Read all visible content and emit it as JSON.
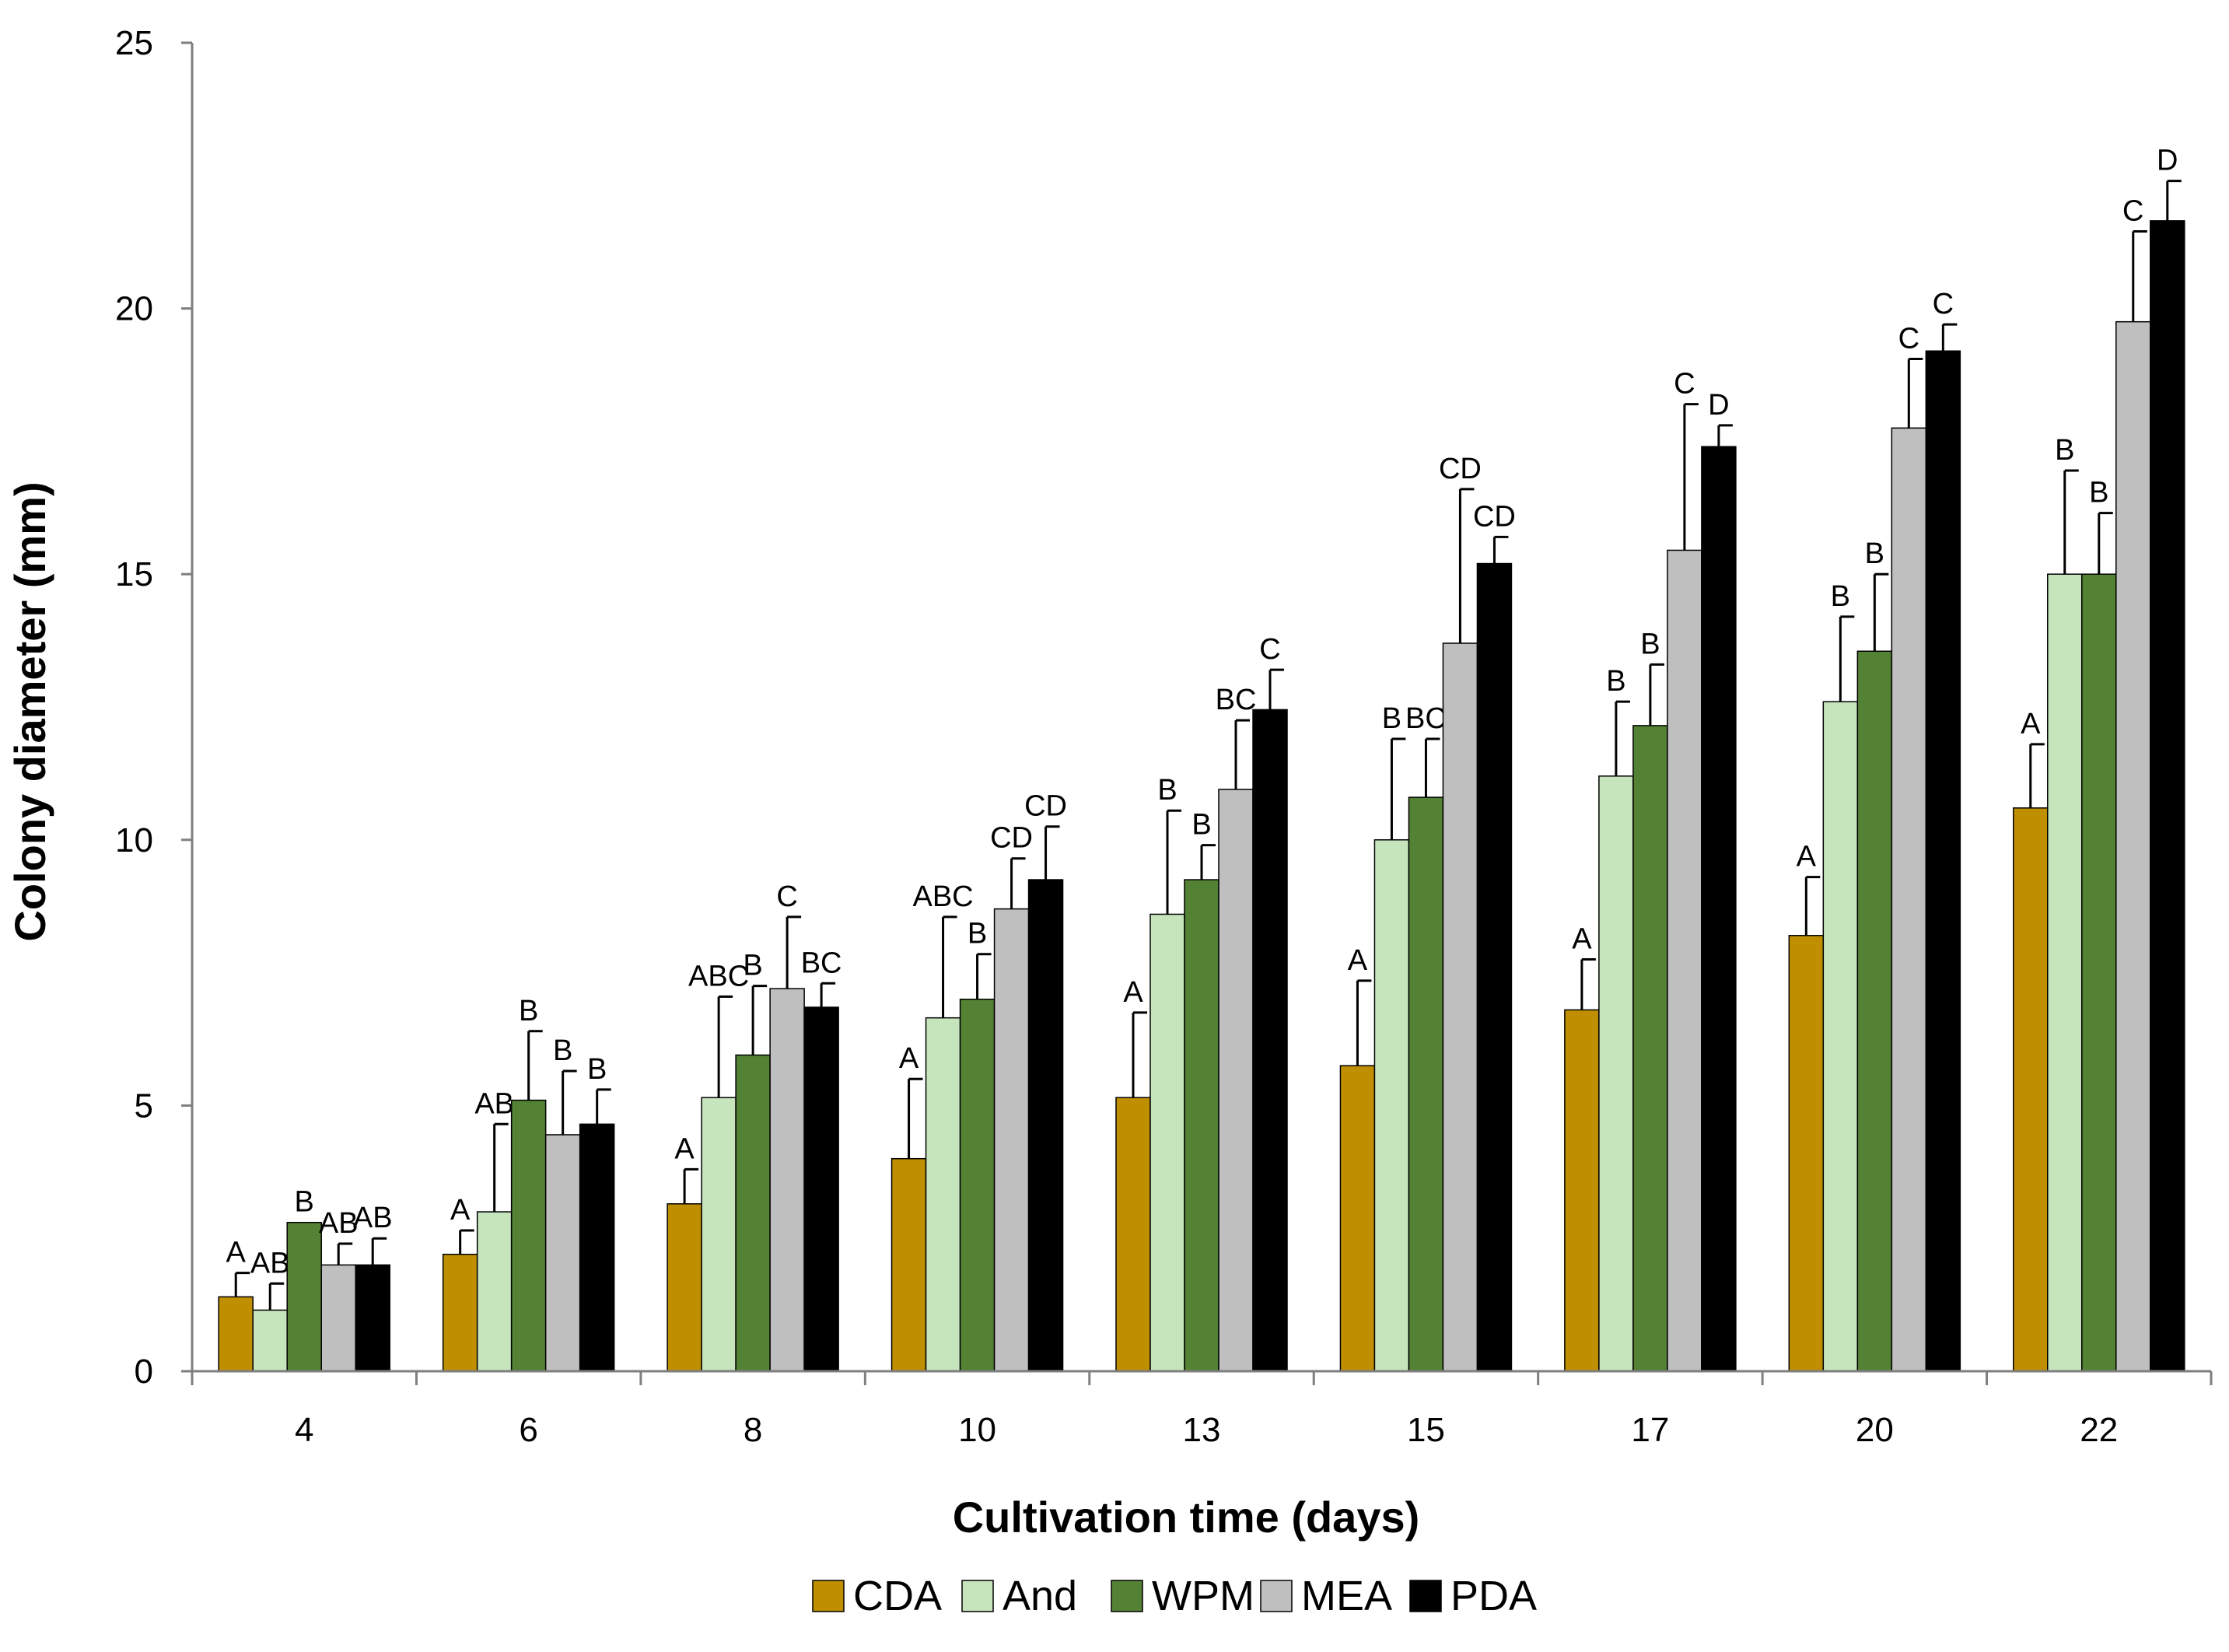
{
  "chart_data": {
    "type": "bar",
    "title": "",
    "xlabel": "Cultivation time (days)",
    "ylabel": "Colony diameter (mm)",
    "ylim": [
      0,
      25
    ],
    "yticks": [
      0,
      5,
      10,
      15,
      20,
      25
    ],
    "grid": false,
    "legend_position": "bottom",
    "categories": [
      "4",
      "6",
      "8",
      "10",
      "13",
      "15",
      "17",
      "20",
      "22"
    ],
    "series": [
      {
        "name": "CDA",
        "color": "#BF8F00",
        "values": [
          1.4,
          2.2,
          3.15,
          4.0,
          5.15,
          5.75,
          6.8,
          8.2,
          10.6
        ],
        "errors": [
          0.45,
          0.45,
          0.65,
          1.5,
          1.6,
          1.6,
          0.95,
          1.1,
          1.2
        ],
        "sig": [
          "A",
          "A",
          "A",
          "A",
          "A",
          "A",
          "A",
          "A",
          "A"
        ]
      },
      {
        "name": "And",
        "color": "#C7E5BD",
        "values": [
          1.15,
          3.0,
          5.15,
          6.65,
          8.6,
          10.0,
          11.2,
          12.6,
          15.0
        ],
        "errors": [
          0.5,
          1.65,
          1.9,
          1.9,
          1.95,
          1.9,
          1.4,
          1.6,
          1.95
        ],
        "sig": [
          "AB",
          "AB",
          "ABC",
          "ABC",
          "B",
          "B",
          "B",
          "B",
          "B"
        ]
      },
      {
        "name": "WPM",
        "color": "#548235",
        "values": [
          2.8,
          5.1,
          5.95,
          7.0,
          9.25,
          10.8,
          12.15,
          13.55,
          15.0
        ],
        "errors": [
          0.0,
          1.3,
          1.3,
          0.85,
          0.65,
          1.1,
          1.15,
          1.45,
          1.15
        ],
        "sig": [
          "B",
          "B",
          "B",
          "B",
          "B",
          "BC",
          "B",
          "B",
          "B"
        ]
      },
      {
        "name": "MEA",
        "color": "#BFBFBF",
        "values": [
          2.0,
          4.45,
          7.2,
          8.7,
          10.95,
          13.7,
          15.45,
          17.75,
          19.75
        ],
        "errors": [
          0.4,
          1.2,
          1.35,
          0.95,
          1.3,
          2.9,
          2.75,
          1.3,
          1.7
        ],
        "sig": [
          "AB",
          "B",
          "C",
          "CD",
          "BC",
          "CD",
          "C",
          "C",
          "C"
        ]
      },
      {
        "name": "PDA",
        "color": "#000000",
        "values": [
          2.0,
          4.65,
          6.85,
          9.25,
          12.45,
          15.2,
          17.4,
          19.2,
          21.65
        ],
        "errors": [
          0.5,
          0.65,
          0.45,
          1.0,
          0.75,
          0.5,
          0.4,
          0.5,
          0.75
        ],
        "sig": [
          "AB",
          "B",
          "BC",
          "CD",
          "C",
          "CD",
          "D",
          "C",
          "D"
        ]
      }
    ]
  }
}
